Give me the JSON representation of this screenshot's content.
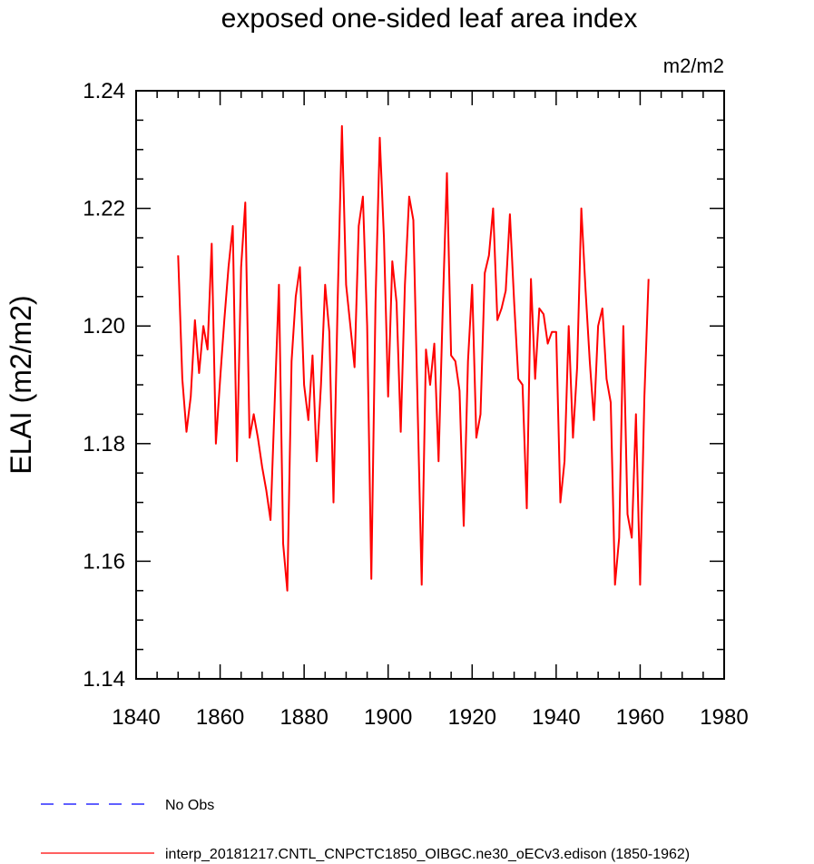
{
  "chart_data": {
    "type": "line",
    "title": "exposed one-sided leaf area index",
    "units": "m2/m2",
    "xlabel": "",
    "ylabel": "ELAI  (m2/m2)",
    "xlim": [
      1840,
      1980
    ],
    "ylim": [
      1.14,
      1.24
    ],
    "xticks": [
      1840,
      1860,
      1880,
      1900,
      1920,
      1940,
      1960,
      1980
    ],
    "yticks": [
      "1.14",
      "1.16",
      "1.18",
      "1.20",
      "1.22",
      "1.24"
    ],
    "legend": [
      {
        "label": "No Obs",
        "color": "#0000ff",
        "style": "dashed"
      },
      {
        "label": "interp_20181217.CNTL_CNPCTC1850_OIBGC.ne30_oECv3.edison (1850-1962)",
        "color": "#ff0000",
        "style": "solid"
      }
    ],
    "series": [
      {
        "name": "interp_20181217.CNTL_CNPCTC1850_OIBGC.ne30_oECv3.edison (1850-1962)",
        "color": "#ff0000",
        "x": [
          1850,
          1851,
          1852,
          1853,
          1854,
          1855,
          1856,
          1857,
          1858,
          1859,
          1860,
          1861,
          1862,
          1863,
          1864,
          1865,
          1866,
          1867,
          1868,
          1869,
          1870,
          1871,
          1872,
          1873,
          1874,
          1875,
          1876,
          1877,
          1878,
          1879,
          1880,
          1881,
          1882,
          1883,
          1884,
          1885,
          1886,
          1887,
          1888,
          1889,
          1890,
          1891,
          1892,
          1893,
          1894,
          1895,
          1896,
          1897,
          1898,
          1899,
          1900,
          1901,
          1902,
          1903,
          1904,
          1905,
          1906,
          1907,
          1908,
          1909,
          1910,
          1911,
          1912,
          1913,
          1914,
          1915,
          1916,
          1917,
          1918,
          1919,
          1920,
          1921,
          1922,
          1923,
          1924,
          1925,
          1926,
          1927,
          1928,
          1929,
          1930,
          1931,
          1932,
          1933,
          1934,
          1935,
          1936,
          1937,
          1938,
          1939,
          1940,
          1941,
          1942,
          1943,
          1944,
          1945,
          1946,
          1947,
          1948,
          1949,
          1950,
          1951,
          1952,
          1953,
          1954,
          1955,
          1956,
          1957,
          1958,
          1959,
          1960,
          1961,
          1962
        ],
        "values": [
          1.212,
          1.191,
          1.182,
          1.188,
          1.201,
          1.192,
          1.2,
          1.196,
          1.214,
          1.18,
          1.191,
          1.201,
          1.21,
          1.217,
          1.177,
          1.21,
          1.221,
          1.181,
          1.185,
          1.181,
          1.176,
          1.172,
          1.167,
          1.187,
          1.207,
          1.163,
          1.155,
          1.194,
          1.205,
          1.21,
          1.19,
          1.184,
          1.195,
          1.177,
          1.19,
          1.207,
          1.199,
          1.17,
          1.205,
          1.234,
          1.207,
          1.2,
          1.193,
          1.217,
          1.222,
          1.2,
          1.157,
          1.204,
          1.232,
          1.215,
          1.188,
          1.211,
          1.204,
          1.182,
          1.207,
          1.222,
          1.218,
          1.187,
          1.156,
          1.196,
          1.19,
          1.197,
          1.177,
          1.203,
          1.226,
          1.195,
          1.194,
          1.189,
          1.166,
          1.194,
          1.207,
          1.181,
          1.185,
          1.209,
          1.212,
          1.22,
          1.201,
          1.203,
          1.206,
          1.219,
          1.204,
          1.191,
          1.19,
          1.169,
          1.208,
          1.191,
          1.203,
          1.202,
          1.197,
          1.199,
          1.199,
          1.17,
          1.177,
          1.2,
          1.181,
          1.193,
          1.22,
          1.206,
          1.194,
          1.184,
          1.2,
          1.203,
          1.191,
          1.187,
          1.156,
          1.164,
          1.2,
          1.168,
          1.164,
          1.185,
          1.156,
          1.188,
          1.208
        ]
      }
    ]
  }
}
